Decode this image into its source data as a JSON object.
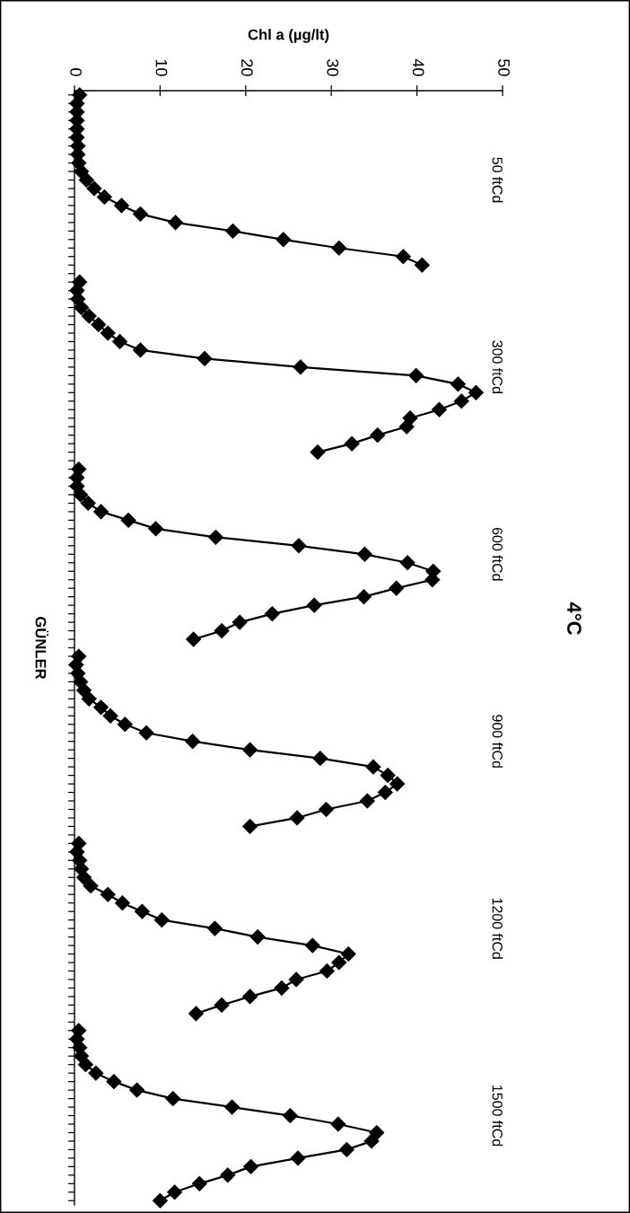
{
  "chart_data": {
    "type": "line",
    "title": "4°C",
    "xlabel": "Chl a (µg/lt)",
    "ylabel": "GÜNLER",
    "orientation": "horizontal",
    "categories": [
      null,
      null,
      null,
      null,
      null,
      null,
      null,
      null,
      null,
      null,
      null,
      null,
      null,
      null,
      null,
      null,
      null,
      null,
      null,
      null,
      null,
      null,
      null,
      null,
      null,
      null,
      null,
      null,
      null,
      null,
      null,
      null,
      null,
      null,
      null,
      null,
      null,
      null,
      null,
      null,
      null,
      null,
      null,
      null,
      null,
      null,
      null,
      null,
      null,
      null,
      null,
      null,
      null,
      null,
      null,
      null,
      null,
      null,
      null,
      null,
      null,
      null,
      null,
      null,
      null,
      null,
      null,
      null,
      null,
      null,
      null,
      null,
      null,
      null,
      null,
      null,
      null,
      null,
      null,
      null,
      null,
      null,
      null,
      null,
      null,
      null,
      null,
      null,
      null,
      null,
      null,
      null,
      null,
      null,
      null,
      null,
      null,
      null,
      null,
      null,
      null,
      null,
      null,
      null,
      null,
      null,
      null,
      null,
      null,
      null,
      null,
      null,
      null,
      null,
      null,
      null,
      null,
      null,
      null,
      null,
      null,
      null,
      null,
      null,
      null,
      null,
      null,
      null,
      null,
      null,
      null
    ],
    "xlim": [
      0,
      50
    ],
    "xticks": [
      0,
      10,
      20,
      30,
      40,
      50
    ],
    "tick_labels": "x",
    "marker": "diamond",
    "line_style": "solid",
    "series": [
      {
        "name": "50 ftCd",
        "color": "#000000",
        "values": [
          0.6,
          0.3,
          0.3,
          0.3,
          0.3,
          0.3,
          0.4,
          0.4,
          0.5,
          0.8,
          1.4,
          2.3,
          3.5,
          5.5,
          7.7,
          11.8,
          18.5,
          24.4,
          30.9,
          38.4,
          40.6,
          null,
          null,
          null,
          null,
          null,
          null,
          null,
          null,
          null,
          null,
          null,
          null,
          null,
          null,
          null,
          null,
          null,
          null,
          null,
          null,
          null,
          null,
          null,
          null,
          null,
          null,
          null,
          null,
          null,
          null,
          null,
          null,
          null,
          null,
          null,
          null,
          null,
          null,
          null,
          null,
          null,
          null,
          null,
          null,
          null,
          null,
          null,
          null,
          null,
          null,
          null,
          null,
          null,
          null,
          null,
          null,
          null,
          null,
          null,
          null,
          null,
          null,
          null,
          null,
          null,
          null,
          null,
          null,
          null,
          null,
          null,
          null,
          null,
          null,
          null,
          null,
          null,
          null,
          null,
          null,
          null,
          null,
          null,
          null,
          null,
          null,
          null,
          null,
          null,
          null,
          null,
          null,
          null,
          null,
          null,
          null,
          null,
          null,
          null,
          null,
          null,
          null,
          null,
          null,
          null,
          null,
          null,
          null,
          null,
          null
        ]
      },
      {
        "name": "300 ftCd",
        "color": "#000000",
        "values": [
          null,
          null,
          null,
          null,
          null,
          null,
          null,
          null,
          null,
          null,
          null,
          null,
          null,
          null,
          null,
          null,
          null,
          null,
          null,
          null,
          null,
          null,
          0.6,
          0.3,
          0.4,
          0.8,
          1.7,
          2.8,
          3.9,
          5.3,
          7.7,
          15.2,
          26.4,
          39.9,
          44.8,
          46.9,
          45.2,
          42.6,
          39.2,
          38.8,
          35.4,
          32.4,
          28.4,
          null,
          null,
          null,
          null,
          null,
          null,
          null,
          null,
          null,
          null,
          null,
          null,
          null,
          null,
          null,
          null,
          null,
          null,
          null,
          null,
          null,
          null,
          null,
          null,
          null,
          null,
          null,
          null,
          null,
          null,
          null,
          null,
          null,
          null,
          null,
          null,
          null,
          null,
          null,
          null,
          null,
          null,
          null,
          null,
          null,
          null,
          null,
          null,
          null,
          null,
          null,
          null,
          null,
          null,
          null,
          null,
          null,
          null,
          null,
          null,
          null,
          null,
          null,
          null,
          null,
          null,
          null,
          null,
          null,
          null,
          null,
          null,
          null,
          null,
          null,
          null,
          null,
          null,
          null,
          null,
          null,
          null,
          null,
          null,
          null,
          null,
          null,
          null
        ]
      },
      {
        "name": "600 ftCd",
        "color": "#000000",
        "values": [
          null,
          null,
          null,
          null,
          null,
          null,
          null,
          null,
          null,
          null,
          null,
          null,
          null,
          null,
          null,
          null,
          null,
          null,
          null,
          null,
          null,
          null,
          null,
          null,
          null,
          null,
          null,
          null,
          null,
          null,
          null,
          null,
          null,
          null,
          null,
          null,
          null,
          null,
          null,
          null,
          null,
          null,
          null,
          null,
          0.5,
          0.3,
          0.3,
          0.7,
          1.6,
          3.1,
          6.3,
          9.5,
          16.5,
          26.2,
          33.9,
          38.9,
          41.9,
          41.8,
          37.6,
          33.8,
          28.0,
          23.1,
          19.3,
          17.2,
          13.9,
          null,
          null,
          null,
          null,
          null,
          null,
          null,
          null,
          null,
          null,
          null,
          null,
          null,
          null,
          null,
          null,
          null,
          null,
          null,
          null,
          null,
          null,
          null,
          null,
          null,
          null,
          null,
          null,
          null,
          null,
          null,
          null,
          null,
          null,
          null,
          null,
          null,
          null,
          null,
          null,
          null,
          null,
          null,
          null,
          null,
          null,
          null,
          null,
          null,
          null,
          null,
          null,
          null,
          null,
          null,
          null,
          null,
          null,
          null,
          null,
          null,
          null,
          null,
          null,
          null,
          null
        ]
      },
      {
        "name": "900 ftCd",
        "color": "#000000",
        "values": [
          null,
          null,
          null,
          null,
          null,
          null,
          null,
          null,
          null,
          null,
          null,
          null,
          null,
          null,
          null,
          null,
          null,
          null,
          null,
          null,
          null,
          null,
          null,
          null,
          null,
          null,
          null,
          null,
          null,
          null,
          null,
          null,
          null,
          null,
          null,
          null,
          null,
          null,
          null,
          null,
          null,
          null,
          null,
          null,
          null,
          null,
          null,
          null,
          null,
          null,
          null,
          null,
          null,
          null,
          null,
          null,
          null,
          null,
          null,
          null,
          null,
          null,
          null,
          null,
          null,
          null,
          0.5,
          0.2,
          0.4,
          0.7,
          1.1,
          1.7,
          3.1,
          4.2,
          5.9,
          8.4,
          13.8,
          20.5,
          28.7,
          34.9,
          36.6,
          37.7,
          36.3,
          34.2,
          29.4,
          26.0,
          20.5,
          null,
          null,
          null,
          null,
          null,
          null,
          null,
          null,
          null,
          null,
          null,
          null,
          null,
          null,
          null,
          null,
          null,
          null,
          null,
          null,
          null,
          null,
          null,
          null,
          null,
          null,
          null,
          null,
          null,
          null,
          null,
          null,
          null,
          null,
          null,
          null,
          null,
          null,
          null,
          null,
          null,
          null,
          null,
          null
        ]
      },
      {
        "name": "1200 ftCd",
        "color": "#000000",
        "values": [
          null,
          null,
          null,
          null,
          null,
          null,
          null,
          null,
          null,
          null,
          null,
          null,
          null,
          null,
          null,
          null,
          null,
          null,
          null,
          null,
          null,
          null,
          null,
          null,
          null,
          null,
          null,
          null,
          null,
          null,
          null,
          null,
          null,
          null,
          null,
          null,
          null,
          null,
          null,
          null,
          null,
          null,
          null,
          null,
          null,
          null,
          null,
          null,
          null,
          null,
          null,
          null,
          null,
          null,
          null,
          null,
          null,
          null,
          null,
          null,
          null,
          null,
          null,
          null,
          null,
          null,
          null,
          null,
          null,
          null,
          null,
          null,
          null,
          null,
          null,
          null,
          null,
          null,
          null,
          null,
          null,
          null,
          null,
          null,
          null,
          null,
          null,
          null,
          0.5,
          0.3,
          0.6,
          0.8,
          1.1,
          1.9,
          3.9,
          5.6,
          7.9,
          10.2,
          16.4,
          21.4,
          27.8,
          32.0,
          30.9,
          29.5,
          25.9,
          24.2,
          20.5,
          17.2,
          14.2,
          null,
          null,
          null,
          null,
          null,
          null,
          null,
          null,
          null,
          null,
          null,
          null,
          null,
          null,
          null,
          null,
          null,
          null,
          null,
          null,
          null,
          null
        ]
      },
      {
        "name": "1500 ftCd",
        "color": "#000000",
        "values": [
          null,
          null,
          null,
          null,
          null,
          null,
          null,
          null,
          null,
          null,
          null,
          null,
          null,
          null,
          null,
          null,
          null,
          null,
          null,
          null,
          null,
          null,
          null,
          null,
          null,
          null,
          null,
          null,
          null,
          null,
          null,
          null,
          null,
          null,
          null,
          null,
          null,
          null,
          null,
          null,
          null,
          null,
          null,
          null,
          null,
          null,
          null,
          null,
          null,
          null,
          null,
          null,
          null,
          null,
          null,
          null,
          null,
          null,
          null,
          null,
          null,
          null,
          null,
          null,
          null,
          null,
          null,
          null,
          null,
          null,
          null,
          null,
          null,
          null,
          null,
          null,
          null,
          null,
          null,
          null,
          null,
          null,
          null,
          null,
          null,
          null,
          null,
          null,
          null,
          null,
          null,
          null,
          null,
          null,
          null,
          null,
          null,
          null,
          null,
          null,
          null,
          null,
          null,
          null,
          null,
          null,
          null,
          null,
          null,
          null,
          0.5,
          0.3,
          0.6,
          0.8,
          1.3,
          2.5,
          4.6,
          7.3,
          11.5,
          18.4,
          25.2,
          30.8,
          35.3,
          34.7,
          31.8,
          26.1,
          20.6,
          17.9,
          14.6,
          11.7,
          10.0
        ]
      }
    ]
  }
}
